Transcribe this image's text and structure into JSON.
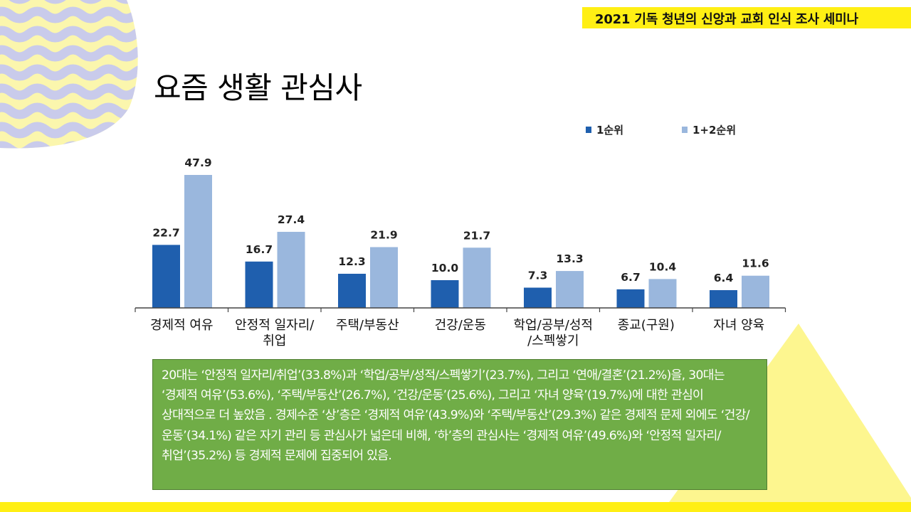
{
  "header": {
    "title": "2021 기독 청년의 신앙과 교회 인식 조사 세미나"
  },
  "page": {
    "title": "요즘 생활 관심사"
  },
  "colors": {
    "series1": "#1f5fae",
    "series2": "#9ab7dd",
    "accent_yellow": "#ffef14",
    "summary_bg": "#70ad47",
    "wave_blue": "#c9cbeb",
    "wave_yellow": "#fbf6ad"
  },
  "chart_data": {
    "type": "bar",
    "title": "",
    "xlabel": "",
    "ylabel": "",
    "ylim": [
      0,
      50
    ],
    "legend_position": "top-right",
    "categories": [
      [
        "경제적 여유"
      ],
      [
        "안정적 일자리/",
        "취업"
      ],
      [
        "주택/부동산"
      ],
      [
        "건강/운동"
      ],
      [
        "학업/공부/성적",
        "/스펙쌓기"
      ],
      [
        "종교(구원)"
      ],
      [
        "자녀 양육"
      ]
    ],
    "series": [
      {
        "name": "1순위",
        "values": [
          22.7,
          16.7,
          12.3,
          10.0,
          7.3,
          6.7,
          6.4
        ]
      },
      {
        "name": "1+2순위",
        "values": [
          47.9,
          27.4,
          21.9,
          21.7,
          13.3,
          10.4,
          11.6
        ]
      }
    ]
  },
  "summary": {
    "text": "20대는 ‘안정적 일자리/취업’(33.8%)과 ‘학업/공부/성적/스펙쌓기’(23.7%), 그리고 ‘연애/결혼’(21.2%)을, 30대는 ‘경제적 여유’(53.6%), ‘주택/부동산’(26.7%), ‘건강/운동’(25.6%), 그리고 ‘자녀 양육’(19.7%)에 대한 관심이 상대적으로 더 높았음 . 경제수준 ‘상’층은 ‘경제적 여유’(43.9%)와 ‘주택/부동산’(29.3%) 같은 경제적 문제 외에도 ‘건강/운동’(34.1%) 같은 자기 관리 등 관심사가 넓은데 비해, ‘하’층의 관심사는 ‘경제적 여유’(49.6%)와 ‘안정적 일자리/취업’(35.2%) 등 경제적 문제에 집중되어 있음."
  }
}
